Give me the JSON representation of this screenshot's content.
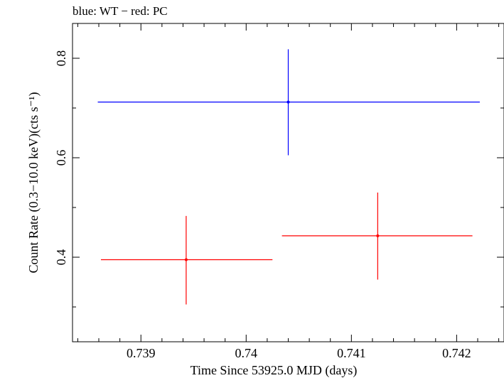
{
  "chart_data": {
    "type": "scatter",
    "title": "blue: WT − red: PC",
    "xlabel": "Time Since 53925.0 MJD (days)",
    "ylabel": "Count Rate (0.3−10.0 keV)(cts s⁻¹)",
    "xlim": [
      0.73835,
      0.74245
    ],
    "ylim": [
      0.23,
      0.87
    ],
    "x_ticks": [
      {
        "value": 0.739,
        "label": "0.739"
      },
      {
        "value": 0.74,
        "label": "0.74"
      },
      {
        "value": 0.741,
        "label": "0.741"
      },
      {
        "value": 0.742,
        "label": "0.742"
      }
    ],
    "y_ticks": [
      {
        "value": 0.4,
        "label": "0.4"
      },
      {
        "value": 0.6,
        "label": "0.6"
      },
      {
        "value": 0.8,
        "label": "0.8"
      }
    ],
    "series": [
      {
        "name": "WT",
        "color": "#0000ff",
        "points": [
          {
            "x": 0.7404,
            "y": 0.712,
            "x_lo": 0.73859,
            "x_hi": 0.74222,
            "y_lo": 0.605,
            "y_hi": 0.818
          }
        ]
      },
      {
        "name": "PC",
        "color": "#ff0000",
        "points": [
          {
            "x": 0.73943,
            "y": 0.395,
            "x_lo": 0.73862,
            "x_hi": 0.74025,
            "y_lo": 0.305,
            "y_hi": 0.483
          },
          {
            "x": 0.74125,
            "y": 0.443,
            "x_lo": 0.74034,
            "x_hi": 0.74215,
            "y_lo": 0.355,
            "y_hi": 0.53
          }
        ]
      }
    ]
  }
}
